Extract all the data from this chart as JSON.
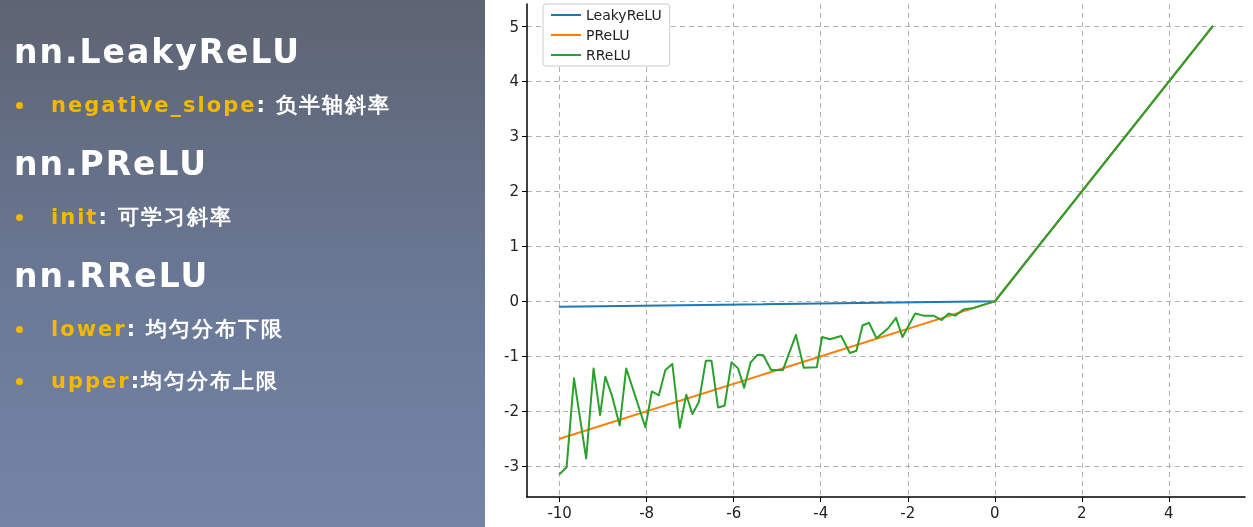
{
  "chart_data": {
    "type": "line",
    "annotations": [
      "nn.LeakyReLU",
      "negative_slope: 负半轴斜率",
      "nn.PReLU",
      "init: 可学习斜率",
      "nn.RReLU",
      "lower: 均匀分布下限",
      "upper:均匀分布上限"
    ],
    "series": [
      {
        "name": "LeakyReLU",
        "color": "#1f77b4",
        "x": [
          -10,
          0,
          5
        ],
        "values": [
          -0.1,
          0,
          5
        ]
      },
      {
        "name": "PReLU",
        "color": "#ff7f0e",
        "x": [
          -10,
          0,
          5
        ],
        "values": [
          -2.5,
          0,
          5
        ]
      },
      {
        "name": "RReLU",
        "color": "#2ca02c",
        "x": [
          -10,
          -9.84,
          -9.67,
          -9.39,
          -9.22,
          -9.07,
          -8.95,
          -8.8,
          -8.62,
          -8.47,
          -8.03,
          -7.88,
          -7.72,
          -7.57,
          -7.41,
          -7.24,
          -7.09,
          -6.95,
          -6.8,
          -6.64,
          -6.51,
          -6.36,
          -6.21,
          -6.05,
          -5.9,
          -5.76,
          -5.61,
          -5.45,
          -5.32,
          -5.14,
          -4.87,
          -4.57,
          -4.39,
          -4.09,
          -3.97,
          -3.79,
          -3.53,
          -3.33,
          -3.18,
          -3.04,
          -2.89,
          -2.72,
          -2.45,
          -2.27,
          -2.12,
          -1.83,
          -1.64,
          -1.41,
          -1.22,
          -1.06,
          -0.91,
          -0.72,
          -0.49,
          -0.25,
          0,
          5
        ],
        "values": [
          -3.14,
          -3.02,
          -1.4,
          -2.86,
          -1.22,
          -2.07,
          -1.37,
          -1.71,
          -2.26,
          -1.22,
          -2.29,
          -1.64,
          -1.71,
          -1.25,
          -1.14,
          -2.3,
          -1.7,
          -2.05,
          -1.83,
          -1.08,
          -1.08,
          -1.93,
          -1.9,
          -1.11,
          -1.22,
          -1.57,
          -1.11,
          -0.97,
          -0.98,
          -1.25,
          -1.25,
          -0.61,
          -1.21,
          -1.2,
          -0.65,
          -0.69,
          -0.63,
          -0.94,
          -0.9,
          -0.44,
          -0.39,
          -0.67,
          -0.49,
          -0.3,
          -0.65,
          -0.22,
          -0.26,
          -0.26,
          -0.34,
          -0.22,
          -0.26,
          -0.15,
          -0.12,
          -0.06,
          0,
          5
        ]
      }
    ],
    "xlim": [
      -10.75,
      5.75
    ],
    "xticks": [
      -10,
      -8,
      -6,
      -4,
      -2,
      0,
      2,
      4
    ],
    "ylim": [
      -3.56,
      5.41
    ],
    "yticks": [
      -3,
      -2,
      -1,
      0,
      1,
      2,
      3,
      4,
      5
    ],
    "grid": true,
    "legend": "top left",
    "marker": "none",
    "line_style": "solid"
  }
}
